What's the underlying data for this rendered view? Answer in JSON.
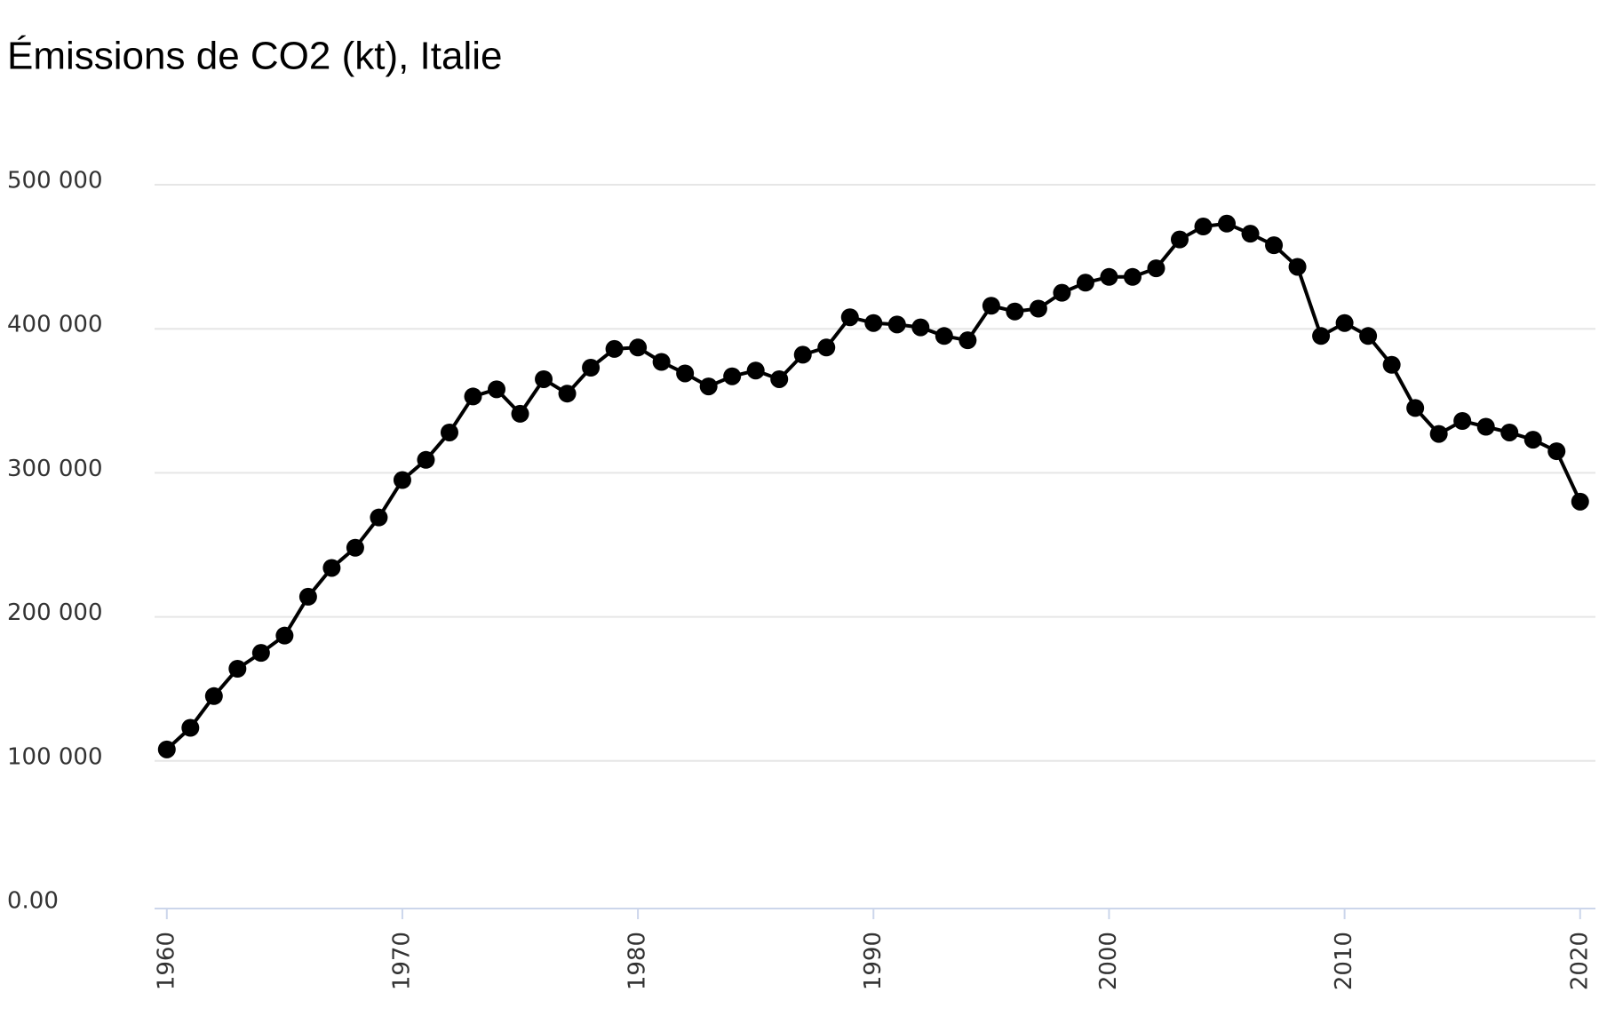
{
  "chart_data": {
    "type": "line",
    "title": "Émissions de CO2 (kt), Italie",
    "x": [
      1960,
      1961,
      1962,
      1963,
      1964,
      1965,
      1966,
      1967,
      1968,
      1969,
      1970,
      1971,
      1972,
      1973,
      1974,
      1975,
      1976,
      1977,
      1978,
      1979,
      1980,
      1981,
      1982,
      1983,
      1984,
      1985,
      1986,
      1987,
      1988,
      1989,
      1990,
      1991,
      1992,
      1993,
      1994,
      1995,
      1996,
      1997,
      1998,
      1999,
      2000,
      2001,
      2002,
      2003,
      2004,
      2005,
      2006,
      2007,
      2008,
      2009,
      2010,
      2011,
      2012,
      2013,
      2014,
      2015,
      2016,
      2017,
      2018,
      2019,
      2020
    ],
    "series": [
      {
        "color": "#000000",
        "values": [
          108000,
          123000,
          145000,
          164000,
          175000,
          187000,
          214000,
          234000,
          248000,
          269000,
          295000,
          309000,
          328000,
          353000,
          358000,
          341000,
          365000,
          355000,
          373000,
          386000,
          387000,
          377000,
          369000,
          360000,
          367000,
          371000,
          365000,
          382000,
          387000,
          408000,
          404000,
          403000,
          401000,
          395000,
          392000,
          416000,
          412000,
          414000,
          425000,
          432000,
          436000,
          436000,
          442000,
          462000,
          471000,
          473000,
          466000,
          458000,
          443000,
          395000,
          404000,
          395000,
          375000,
          345000,
          327000,
          336000,
          332000,
          328000,
          323000,
          315000,
          280000
        ]
      }
    ],
    "xlim": [
      1959.48,
      2020.65
    ],
    "xticks": [
      1960,
      1970,
      1980,
      1990,
      2000,
      2010,
      2020
    ],
    "ylim": [
      0,
      500000
    ],
    "yticks": [
      {
        "value": 0,
        "label": "0.00"
      },
      {
        "value": 100000,
        "label": "100 000"
      },
      {
        "value": 200000,
        "label": "200 000"
      },
      {
        "value": 300000,
        "label": "300 000"
      },
      {
        "value": 400000,
        "label": "400 000"
      },
      {
        "value": 500000,
        "label": "500 000"
      }
    ],
    "grid": true
  }
}
